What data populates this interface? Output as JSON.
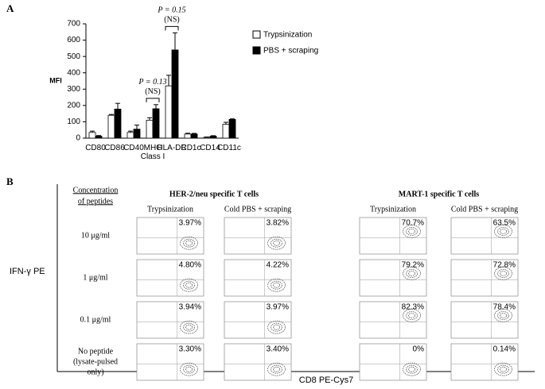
{
  "chart_data": {
    "type": "bar",
    "y_label": "MFI",
    "categories": [
      "CD80",
      "CD86",
      "CD40",
      "MHC\nClass I",
      "HLA-DR",
      "CD1c",
      "CD14",
      "CD11c"
    ],
    "series": [
      {
        "name": "Trypsinization",
        "color": "#ffffff",
        "values": [
          35,
          140,
          35,
          110,
          320,
          25,
          5,
          85
        ],
        "errors": [
          8,
          5,
          8,
          15,
          65,
          5,
          2,
          12
        ]
      },
      {
        "name": "PBS + scraping",
        "color": "#000000",
        "values": [
          12,
          178,
          55,
          180,
          540,
          25,
          12,
          115
        ],
        "errors": [
          4,
          35,
          25,
          25,
          105,
          4,
          3,
          3
        ]
      }
    ],
    "ylim": [
      0,
      700
    ],
    "yticks": [
      0,
      100,
      200,
      300,
      400,
      500,
      600,
      700
    ],
    "annotations": [
      {
        "category": 3,
        "p": "P = 0.13",
        "ns": "(NS)"
      },
      {
        "category": 4,
        "p": "P = 0.15",
        "ns": "(NS)"
      }
    ],
    "legend": "right"
  },
  "panel_labels": [
    "A",
    "B"
  ],
  "flow": {
    "y_axis": "IFN-γ PE",
    "x_axis": "CD8 PE-Cys7",
    "row_header": [
      "Concentration",
      "of peptides"
    ],
    "groups": [
      {
        "title": "HER-2/neu specific T cells",
        "columns": [
          "Trypsinization",
          "Cold PBS + scraping"
        ]
      },
      {
        "title": "MART-1 specific T cells",
        "columns": [
          "Trypsinization",
          "Cold PBS + scraping"
        ]
      }
    ],
    "rows": [
      {
        "label": [
          "10 μg/ml"
        ],
        "percents": [
          "3.97%",
          "3.82%",
          "70.7%",
          "63.5%"
        ]
      },
      {
        "label": [
          "1 μg/ml"
        ],
        "percents": [
          "4.80%",
          "4.22%",
          "79.2%",
          "72.8%"
        ]
      },
      {
        "label": [
          "0.1 μg/ml"
        ],
        "percents": [
          "3.94%",
          "3.97%",
          "82.3%",
          "78.4%"
        ]
      },
      {
        "label": [
          "No peptide",
          "(lysate-pulsed",
          "only)"
        ],
        "percents": [
          "3.30%",
          "3.40%",
          "0%",
          "0.14%"
        ]
      }
    ]
  }
}
